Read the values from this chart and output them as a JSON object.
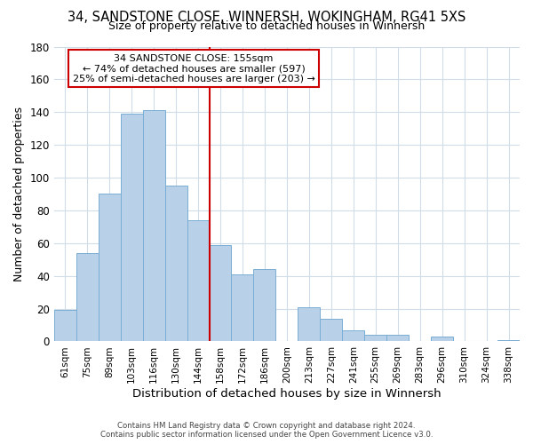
{
  "title1": "34, SANDSTONE CLOSE, WINNERSH, WOKINGHAM, RG41 5XS",
  "title2": "Size of property relative to detached houses in Winnersh",
  "xlabel": "Distribution of detached houses by size in Winnersh",
  "ylabel": "Number of detached properties",
  "bar_labels": [
    "61sqm",
    "75sqm",
    "89sqm",
    "103sqm",
    "116sqm",
    "130sqm",
    "144sqm",
    "158sqm",
    "172sqm",
    "186sqm",
    "200sqm",
    "213sqm",
    "227sqm",
    "241sqm",
    "255sqm",
    "269sqm",
    "283sqm",
    "296sqm",
    "310sqm",
    "324sqm",
    "338sqm"
  ],
  "bar_heights": [
    19,
    54,
    90,
    139,
    141,
    95,
    74,
    59,
    41,
    44,
    0,
    21,
    14,
    7,
    4,
    4,
    0,
    3,
    0,
    0,
    1
  ],
  "bar_color": "#b8d0e8",
  "bar_edge_color": "#7aadd4",
  "vline_color": "#cc0000",
  "vline_x_index": 7,
  "annotation_title": "34 SANDSTONE CLOSE: 155sqm",
  "annotation_line1": "← 74% of detached houses are smaller (597)",
  "annotation_line2": "25% of semi-detached houses are larger (203) →",
  "annotation_box_color": "#ffffff",
  "annotation_box_edge": "#cc0000",
  "ylim": [
    0,
    180
  ],
  "yticks": [
    0,
    20,
    40,
    60,
    80,
    100,
    120,
    140,
    160,
    180
  ],
  "footer1": "Contains HM Land Registry data © Crown copyright and database right 2024.",
  "footer2": "Contains public sector information licensed under the Open Government Licence v3.0.",
  "grid_color": "#d0dce8",
  "bg_color": "#ffffff"
}
